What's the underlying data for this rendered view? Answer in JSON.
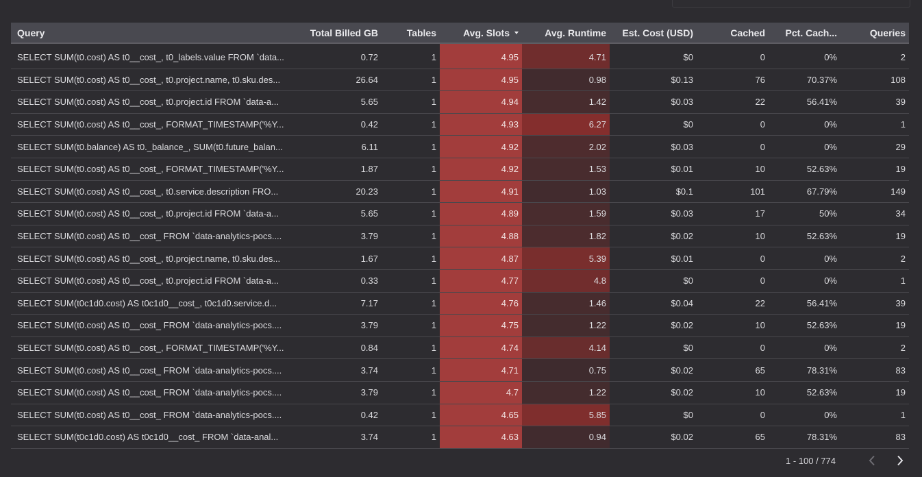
{
  "table": {
    "columns": [
      {
        "label": "Query",
        "align": "left"
      },
      {
        "label": "Total Billed GB",
        "align": "right"
      },
      {
        "label": "Tables",
        "align": "right"
      },
      {
        "label": "Avg. Slots",
        "align": "right",
        "sorted": "desc"
      },
      {
        "label": "Avg. Runtime",
        "align": "right"
      },
      {
        "label": "Est. Cost (USD)",
        "align": "right"
      },
      {
        "label": "Cached",
        "align": "right"
      },
      {
        "label": "Pct. Cach...",
        "align": "right"
      },
      {
        "label": "Queries",
        "align": "right"
      }
    ],
    "heat_colors": {
      "slots": "#a23d3c",
      "runtime_low": "#352b2e",
      "runtime_high": "#842e2d",
      "runtime_max": 6.27
    },
    "rows": [
      {
        "query": "SELECT SUM(t0.cost) AS t0__cost_, t0_labels.value FROM `data...",
        "billed_gb": "0.72",
        "tables": "1",
        "avg_slots": "4.95",
        "avg_runtime": "4.71",
        "est_cost": "$0",
        "cached": "0",
        "pct_cached": "0%",
        "queries": "2"
      },
      {
        "query": "SELECT SUM(t0.cost) AS t0__cost_, t0.project.name, t0.sku.des...",
        "billed_gb": "26.64",
        "tables": "1",
        "avg_slots": "4.95",
        "avg_runtime": "0.98",
        "est_cost": "$0.13",
        "cached": "76",
        "pct_cached": "70.37%",
        "queries": "108"
      },
      {
        "query": "SELECT SUM(t0.cost) AS t0__cost_, t0.project.id FROM `data-a...",
        "billed_gb": "5.65",
        "tables": "1",
        "avg_slots": "4.94",
        "avg_runtime": "1.42",
        "est_cost": "$0.03",
        "cached": "22",
        "pct_cached": "56.41%",
        "queries": "39"
      },
      {
        "query": "SELECT SUM(t0.cost) AS t0__cost_, FORMAT_TIMESTAMP('%Y...",
        "billed_gb": "0.42",
        "tables": "1",
        "avg_slots": "4.93",
        "avg_runtime": "6.27",
        "est_cost": "$0",
        "cached": "0",
        "pct_cached": "0%",
        "queries": "1"
      },
      {
        "query": "SELECT SUM(t0.balance) AS t0._balance_, SUM(t0.future_balan...",
        "billed_gb": "6.11",
        "tables": "1",
        "avg_slots": "4.92",
        "avg_runtime": "2.02",
        "est_cost": "$0.03",
        "cached": "0",
        "pct_cached": "0%",
        "queries": "29"
      },
      {
        "query": "SELECT SUM(t0.cost) AS t0__cost_, FORMAT_TIMESTAMP('%Y...",
        "billed_gb": "1.87",
        "tables": "1",
        "avg_slots": "4.92",
        "avg_runtime": "1.53",
        "est_cost": "$0.01",
        "cached": "10",
        "pct_cached": "52.63%",
        "queries": "19"
      },
      {
        "query": "SELECT SUM(t0.cost) AS t0__cost_, t0.service.description FRO...",
        "billed_gb": "20.23",
        "tables": "1",
        "avg_slots": "4.91",
        "avg_runtime": "1.03",
        "est_cost": "$0.1",
        "cached": "101",
        "pct_cached": "67.79%",
        "queries": "149"
      },
      {
        "query": "SELECT SUM(t0.cost) AS t0__cost_, t0.project.id FROM `data-a...",
        "billed_gb": "5.65",
        "tables": "1",
        "avg_slots": "4.89",
        "avg_runtime": "1.59",
        "est_cost": "$0.03",
        "cached": "17",
        "pct_cached": "50%",
        "queries": "34"
      },
      {
        "query": "SELECT SUM(t0.cost) AS t0__cost_ FROM `data-analytics-pocs....",
        "billed_gb": "3.79",
        "tables": "1",
        "avg_slots": "4.88",
        "avg_runtime": "1.82",
        "est_cost": "$0.02",
        "cached": "10",
        "pct_cached": "52.63%",
        "queries": "19"
      },
      {
        "query": "SELECT SUM(t0.cost) AS t0__cost_, t0.project.name, t0.sku.des...",
        "billed_gb": "1.67",
        "tables": "1",
        "avg_slots": "4.87",
        "avg_runtime": "5.39",
        "est_cost": "$0.01",
        "cached": "0",
        "pct_cached": "0%",
        "queries": "2"
      },
      {
        "query": "SELECT SUM(t0.cost) AS t0__cost_, t0.project.id FROM `data-a...",
        "billed_gb": "0.33",
        "tables": "1",
        "avg_slots": "4.77",
        "avg_runtime": "4.8",
        "est_cost": "$0",
        "cached": "0",
        "pct_cached": "0%",
        "queries": "1"
      },
      {
        "query": "SELECT SUM(t0c1d0.cost) AS t0c1d0__cost_, t0c1d0.service.d...",
        "billed_gb": "7.17",
        "tables": "1",
        "avg_slots": "4.76",
        "avg_runtime": "1.46",
        "est_cost": "$0.04",
        "cached": "22",
        "pct_cached": "56.41%",
        "queries": "39"
      },
      {
        "query": "SELECT SUM(t0.cost) AS t0__cost_ FROM `data-analytics-pocs....",
        "billed_gb": "3.79",
        "tables": "1",
        "avg_slots": "4.75",
        "avg_runtime": "1.22",
        "est_cost": "$0.02",
        "cached": "10",
        "pct_cached": "52.63%",
        "queries": "19"
      },
      {
        "query": "SELECT SUM(t0.cost) AS t0__cost_, FORMAT_TIMESTAMP('%Y...",
        "billed_gb": "0.84",
        "tables": "1",
        "avg_slots": "4.74",
        "avg_runtime": "4.14",
        "est_cost": "$0",
        "cached": "0",
        "pct_cached": "0%",
        "queries": "2"
      },
      {
        "query": "SELECT SUM(t0.cost) AS t0__cost_ FROM `data-analytics-pocs....",
        "billed_gb": "3.74",
        "tables": "1",
        "avg_slots": "4.71",
        "avg_runtime": "0.75",
        "est_cost": "$0.02",
        "cached": "65",
        "pct_cached": "78.31%",
        "queries": "83"
      },
      {
        "query": "SELECT SUM(t0.cost) AS t0__cost_ FROM `data-analytics-pocs....",
        "billed_gb": "3.79",
        "tables": "1",
        "avg_slots": "4.7",
        "avg_runtime": "1.22",
        "est_cost": "$0.02",
        "cached": "10",
        "pct_cached": "52.63%",
        "queries": "19"
      },
      {
        "query": "SELECT SUM(t0.cost) AS t0__cost_ FROM `data-analytics-pocs....",
        "billed_gb": "0.42",
        "tables": "1",
        "avg_slots": "4.65",
        "avg_runtime": "5.85",
        "est_cost": "$0",
        "cached": "0",
        "pct_cached": "0%",
        "queries": "1"
      },
      {
        "query": "SELECT SUM(t0c1d0.cost) AS t0c1d0__cost_ FROM `data-anal...",
        "billed_gb": "3.74",
        "tables": "1",
        "avg_slots": "4.63",
        "avg_runtime": "0.94",
        "est_cost": "$0.02",
        "cached": "65",
        "pct_cached": "78.31%",
        "queries": "83"
      }
    ]
  },
  "pagination": {
    "range_label": "1 - 100 / 774",
    "prev_icon": "chevron-left-icon",
    "next_icon": "chevron-right-icon"
  }
}
